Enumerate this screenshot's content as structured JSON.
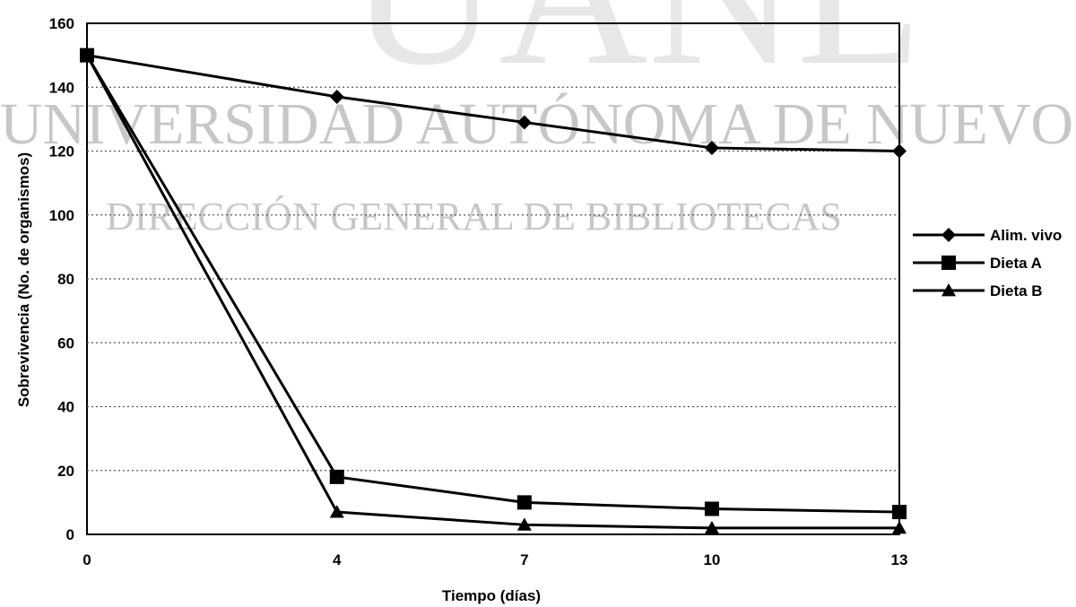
{
  "watermark": {
    "big_text": "UANL",
    "line1": "UNIVERSIDAD AUTÓNOMA DE NUEVO LEÓN",
    "line2": "DIRECCIÓN GENERAL DE BIBLIOTECAS"
  },
  "chart_data": {
    "type": "line",
    "title": "",
    "xlabel": "Tiempo (días)",
    "ylabel": "Sobrevivencia (No. de organismos)",
    "x": [
      0,
      4,
      7,
      10,
      13
    ],
    "x_tick_labels": [
      "0",
      "4",
      "7",
      "10",
      "13"
    ],
    "y_ticks": [
      0,
      20,
      40,
      60,
      80,
      100,
      120,
      140,
      160
    ],
    "y_tick_labels": [
      "0",
      "20",
      "40",
      "60",
      "80",
      "100",
      "120",
      "140",
      "160"
    ],
    "ylim": [
      0,
      160
    ],
    "grid": true,
    "legend_position": "right",
    "series": [
      {
        "name": "Alim. vivo",
        "marker": "diamond",
        "values": [
          150,
          137,
          129,
          121,
          120
        ]
      },
      {
        "name": "Dieta A",
        "marker": "square",
        "values": [
          150,
          18,
          10,
          8,
          7
        ]
      },
      {
        "name": "Dieta B",
        "marker": "triangle",
        "values": [
          150,
          7,
          3,
          2,
          2
        ]
      }
    ],
    "colors": {
      "line": "#000000",
      "grid": "#555555",
      "frame": "#000000"
    }
  }
}
